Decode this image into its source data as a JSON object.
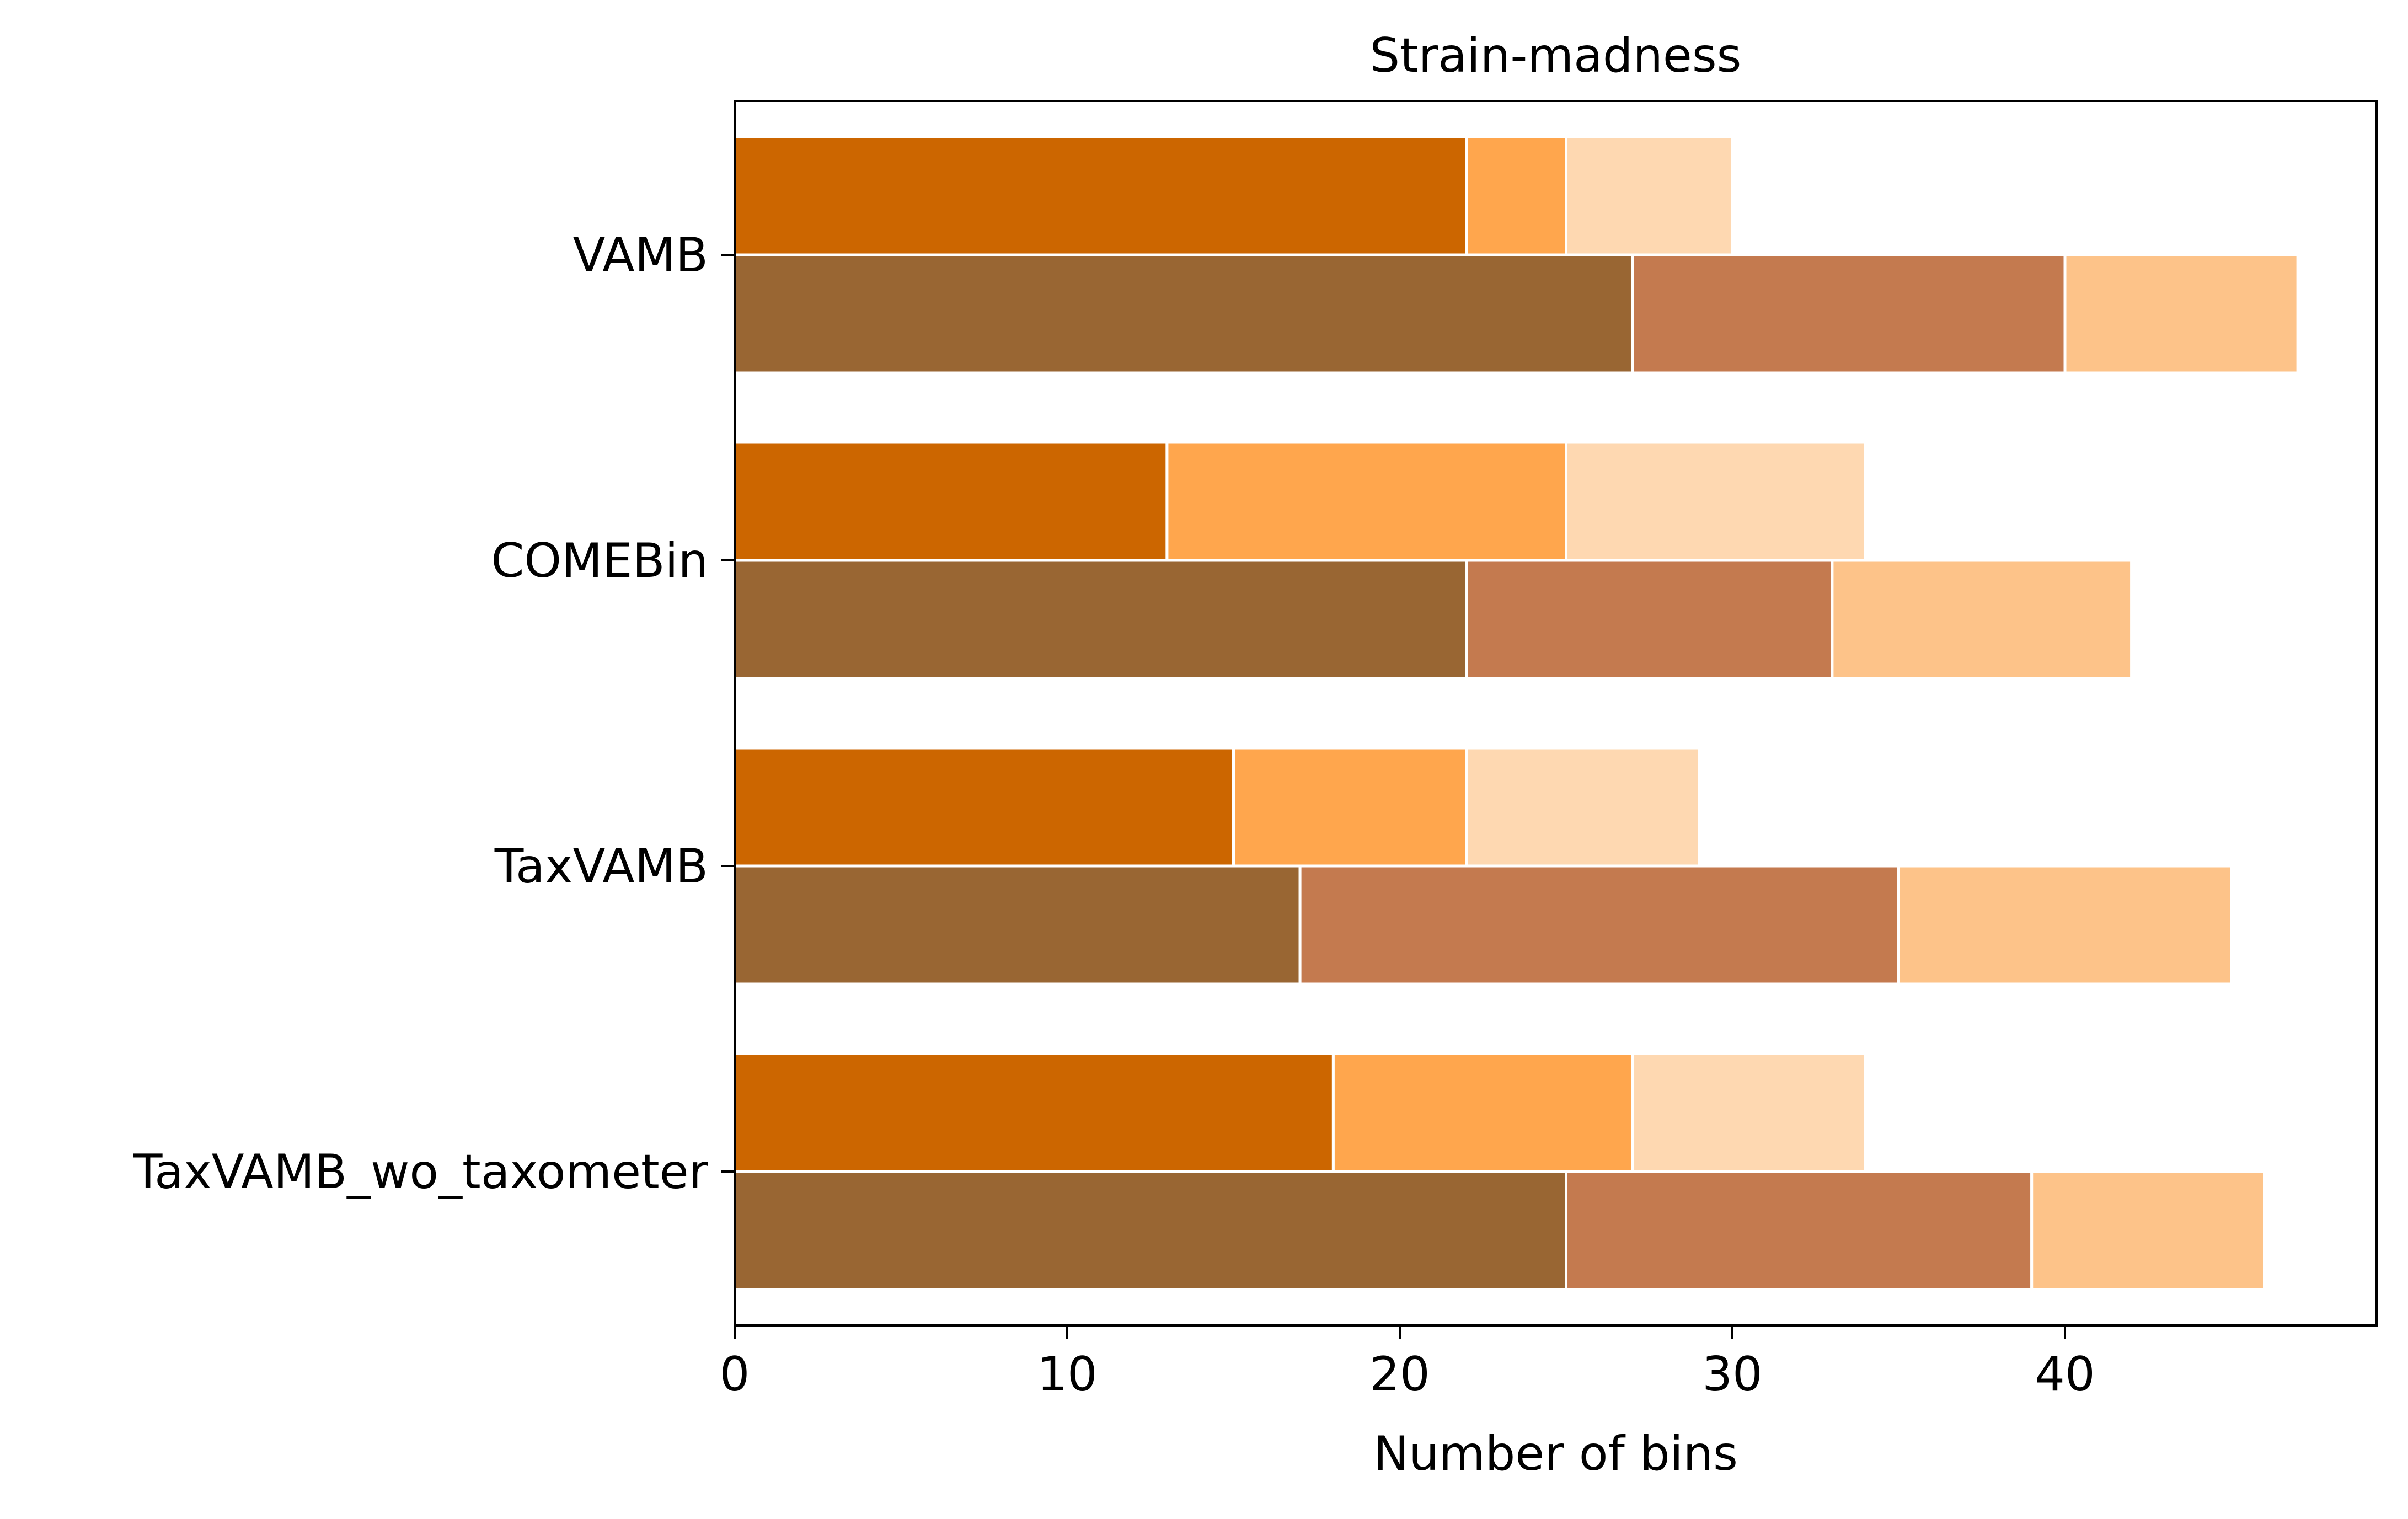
{
  "chart_data": {
    "type": "bar",
    "orientation": "horizontal",
    "stacked": true,
    "title": "Strain-madness",
    "xlabel": "Number of bins",
    "ylabel": "",
    "xlim": [
      0,
      49
    ],
    "xticks": [
      0,
      10,
      20,
      30,
      40
    ],
    "grid": false,
    "legend": "none",
    "categories": [
      "VAMB",
      "COMEBin",
      "TaxVAMB",
      "TaxVAMB_wo_taxometer"
    ],
    "groups": [
      {
        "position": "upper",
        "segments": [
          {
            "color": "#CC6600",
            "values": [
              22,
              13,
              15,
              18
            ]
          },
          {
            "color": "#FFA64D",
            "values": [
              3,
              12,
              7,
              9
            ]
          },
          {
            "color": "#FED8B1",
            "values": [
              5,
              9,
              7,
              7
            ]
          }
        ]
      },
      {
        "position": "lower",
        "segments": [
          {
            "color": "#996633",
            "values": [
              27,
              22,
              17,
              25
            ]
          },
          {
            "color": "#C47A4F",
            "values": [
              13,
              11,
              18,
              14
            ]
          },
          {
            "color": "#FDC389",
            "values": [
              7,
              9,
              10,
              7
            ]
          }
        ]
      }
    ]
  }
}
